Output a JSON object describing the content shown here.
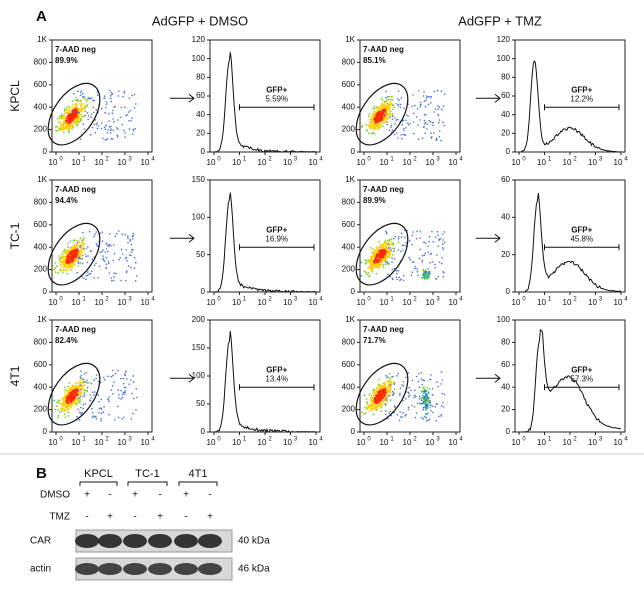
{
  "panel_a": {
    "label": "A",
    "column_titles": [
      "AdGFP + DMSO",
      "AdGFP + TMZ"
    ],
    "x_tick_base": "10",
    "x_tick_exponents": [
      "0",
      "1",
      "2",
      "3",
      "4"
    ],
    "rows": [
      {
        "name": "KPCL",
        "plots": [
          {
            "type": "scatter",
            "gate": "7-AAD neg",
            "percent": "89.9%",
            "yticks": [
              "1K",
              "800",
              "600",
              "400",
              "200",
              "0"
            ]
          },
          {
            "type": "histogram",
            "gate": "GFP+",
            "percent": "5.59%",
            "yticks": [
              "120",
              "100",
              "80",
              "60",
              "40",
              "20",
              "0"
            ]
          },
          {
            "type": "scatter",
            "gate": "7-AAD neg",
            "percent": "85.1%",
            "yticks": [
              "1K",
              "800",
              "600",
              "400",
              "200",
              "0"
            ]
          },
          {
            "type": "histogram",
            "gate": "GFP+",
            "percent": "12.2%",
            "yticks": [
              "120",
              "100",
              "80",
              "60",
              "40",
              "20",
              "0"
            ]
          }
        ]
      },
      {
        "name": "TC-1",
        "plots": [
          {
            "type": "scatter",
            "gate": "7-AAD neg",
            "percent": "94.4%",
            "yticks": [
              "1K",
              "800",
              "600",
              "400",
              "200",
              "0"
            ]
          },
          {
            "type": "histogram",
            "gate": "GFP+",
            "percent": "16.9%",
            "yticks": [
              "150",
              "100",
              "50",
              "0"
            ]
          },
          {
            "type": "scatter",
            "gate": "7-AAD neg",
            "percent": "89.9%",
            "yticks": [
              "1K",
              "800",
              "600",
              "400",
              "200",
              "0"
            ]
          },
          {
            "type": "histogram",
            "gate": "GFP+",
            "percent": "45.8%",
            "yticks": [
              "60",
              "40",
              "20",
              "0"
            ]
          }
        ]
      },
      {
        "name": "4T1",
        "plots": [
          {
            "type": "scatter",
            "gate": "7-AAD neg",
            "percent": "82.4%",
            "yticks": [
              "1K",
              "800",
              "600",
              "400",
              "200",
              "0"
            ]
          },
          {
            "type": "histogram",
            "gate": "GFP+",
            "percent": "13.4%",
            "yticks": [
              "200",
              "150",
              "100",
              "50",
              "0"
            ]
          },
          {
            "type": "scatter",
            "gate": "7-AAD neg",
            "percent": "71.7%",
            "yticks": [
              "1K",
              "800",
              "600",
              "400",
              "200",
              "0"
            ]
          },
          {
            "type": "histogram",
            "gate": "GFP+",
            "percent": "57.3%",
            "yticks": [
              "100",
              "80",
              "60",
              "40",
              "20",
              "0"
            ]
          }
        ]
      }
    ]
  },
  "panel_b": {
    "label": "B",
    "groups": [
      "KPCL",
      "TC-1",
      "4T1"
    ],
    "treatments": [
      {
        "name": "DMSO",
        "signs": [
          "+",
          "-",
          "+",
          "-",
          "+",
          "-"
        ]
      },
      {
        "name": "TMZ",
        "signs": [
          "-",
          "+",
          "-",
          "+",
          "-",
          "+"
        ]
      }
    ],
    "bands": [
      {
        "name": "CAR",
        "size": "40 kDa"
      },
      {
        "name": "actin",
        "size": "46 kDa"
      }
    ]
  }
}
